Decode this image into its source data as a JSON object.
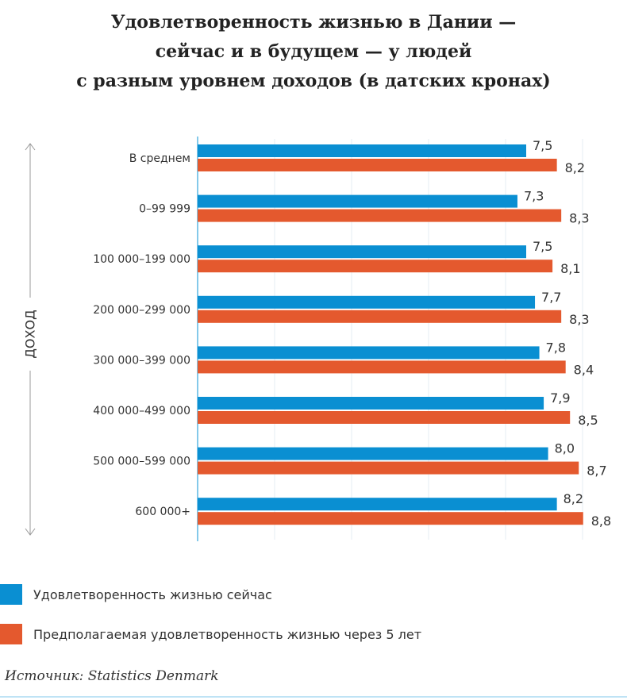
{
  "chart_data": {
    "type": "bar",
    "orientation": "horizontal",
    "title": [
      "Удовлетворенность жизнью в Дании —",
      "сейчас и в будущем — у людей",
      "с разным уровнем доходов (в датских кронах)"
    ],
    "ylabel": "ДОХОД",
    "categories": [
      "В среднем",
      "0–99 999",
      "100 000–199 000",
      "200 000–299 000",
      "300 000–399 000",
      "400 000–499 000",
      "500 000–599 000",
      "600 000+"
    ],
    "series": [
      {
        "name": "Удовлетворенность жизнью сейчас",
        "color": "#0a8fd2",
        "values": [
          7.5,
          7.3,
          7.5,
          7.7,
          7.8,
          7.9,
          8.0,
          8.2
        ],
        "labels": [
          "7,5",
          "7,3",
          "7,5",
          "7,7",
          "7,8",
          "7,9",
          "8,0",
          "8,2"
        ]
      },
      {
        "name": "Предполагаемая удовлетворенность жизнью через 5 лет",
        "color": "#e4592e",
        "values": [
          8.2,
          8.3,
          8.1,
          8.3,
          8.4,
          8.5,
          8.7,
          8.8
        ],
        "labels": [
          "8,2",
          "8,3",
          "8,1",
          "8,3",
          "8,4",
          "8,5",
          "8,7",
          "8,8"
        ]
      }
    ],
    "xlim": [
      0,
      10
    ],
    "grid": true,
    "legend_placement": "bottom"
  },
  "source": "Источник: Statistics Denmark"
}
